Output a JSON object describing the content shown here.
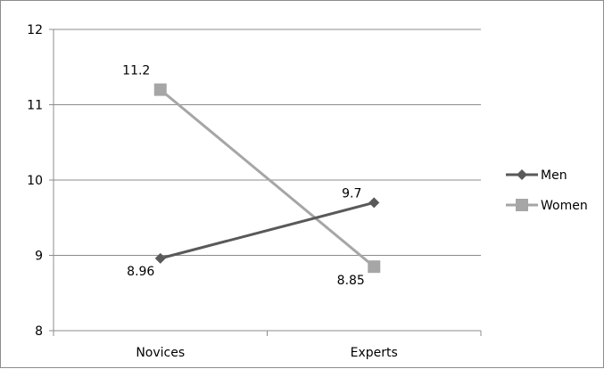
{
  "chart_data": {
    "type": "line",
    "categories": [
      "Novices",
      "Experts"
    ],
    "series": [
      {
        "name": "Men",
        "values": [
          8.96,
          9.7
        ],
        "color": "#595959",
        "marker": "diamond"
      },
      {
        "name": "Women",
        "values": [
          11.2,
          8.85
        ],
        "color": "#a6a6a6",
        "marker": "square"
      }
    ],
    "data_labels": {
      "Men": [
        "8.96",
        "9.7"
      ],
      "Women": [
        "11.2",
        "8.85"
      ]
    },
    "title": "",
    "xlabel": "",
    "ylabel": "",
    "ylim": [
      8,
      12
    ],
    "yticks": [
      8,
      9,
      10,
      11,
      12
    ],
    "grid": true,
    "legend_position": "right"
  }
}
